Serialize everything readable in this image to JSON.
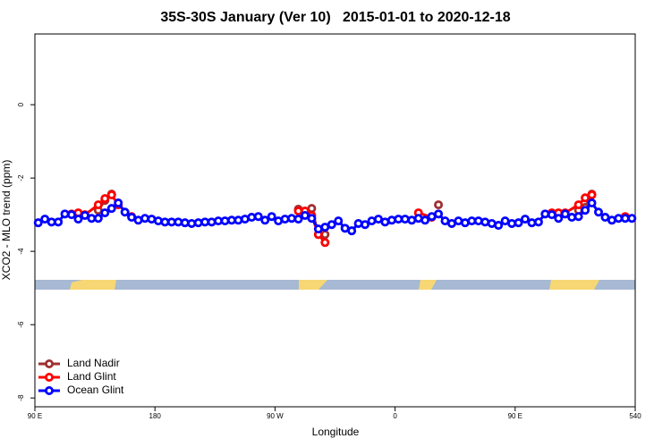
{
  "chart_data": {
    "type": "line",
    "title": "35S-30S January (Ver 10)   2015-01-01 to 2020-12-18",
    "ylabel": "XCO2 - MLO trend (ppm)",
    "xlabel": "Longitude",
    "xlim": [
      90,
      540
    ],
    "ylim": [
      -8.24,
      1.93
    ],
    "xticks": [
      {
        "value": 90,
        "label": "90 E"
      },
      180,
      {
        "value": 270,
        "label": "90 W"
      },
      {
        "value": 360,
        "label": "0"
      },
      {
        "value": 450,
        "label": "90 E"
      },
      540
    ],
    "yticks": [
      0,
      -2,
      -4,
      -6,
      -8
    ],
    "legend": "bottomleft",
    "series": [
      {
        "name": "Land Nadir",
        "color": "#a03030",
        "x": [
          137.5,
          142.5,
          147.5,
          287.5,
          297.5,
          302.5,
          307.5,
          392.5,
          497.5,
          502.5,
          507.5
        ],
        "values": [
          -2.88,
          -2.61,
          -2.44,
          -2.85,
          -2.83,
          -3.54,
          -3.54,
          -2.73,
          -2.88,
          -2.8,
          -2.44
        ]
      },
      {
        "name": "Land Glint",
        "color": "#ff0000",
        "x": [
          117.5,
          122.5,
          127.5,
          137.5,
          142.5,
          147.5,
          152.5,
          162.5,
          287.5,
          292.5,
          297.5,
          302.5,
          307.5,
          377.5,
          387.5,
          477.5,
          482.5,
          487.5,
          497.5,
          502.5,
          507.5,
          532.5
        ],
        "values": [
          -2.98,
          -2.95,
          -3.0,
          -2.73,
          -2.56,
          -2.46,
          -2.73,
          -3.05,
          -2.9,
          -2.9,
          -3.02,
          -3.54,
          -3.76,
          -2.95,
          -3.07,
          -2.95,
          -2.95,
          -2.95,
          -2.73,
          -2.54,
          -2.46,
          -3.05
        ]
      },
      {
        "name": "Ocean Glint",
        "color": "#0000ff",
        "x": [
          92.5,
          97.5,
          102.5,
          107.5,
          112.5,
          117.5,
          122.5,
          127.5,
          132.5,
          137.5,
          142.5,
          147.5,
          152.5,
          157.5,
          162.5,
          167.5,
          172.5,
          177.5,
          182.5,
          187.5,
          192.5,
          197.5,
          202.5,
          207.5,
          212.5,
          217.5,
          222.5,
          227.5,
          232.5,
          237.5,
          242.5,
          247.5,
          252.5,
          257.5,
          262.5,
          267.5,
          272.5,
          277.5,
          282.5,
          287.5,
          292.5,
          297.5,
          302.5,
          307.5,
          312.5,
          317.5,
          322.5,
          327.5,
          332.5,
          337.5,
          342.5,
          347.5,
          352.5,
          357.5,
          362.5,
          367.5,
          372.5,
          377.5,
          382.5,
          387.5,
          392.5,
          397.5,
          402.5,
          407.5,
          412.5,
          417.5,
          422.5,
          427.5,
          432.5,
          437.5,
          442.5,
          447.5,
          452.5,
          457.5,
          462.5,
          467.5,
          472.5,
          477.5,
          482.5,
          487.5,
          492.5,
          497.5,
          502.5,
          507.5,
          512.5,
          517.5,
          522.5,
          527.5,
          532.5,
          537.5
        ],
        "values": [
          -3.22,
          -3.12,
          -3.2,
          -3.2,
          -2.98,
          -3.0,
          -3.12,
          -3.02,
          -3.1,
          -3.1,
          -2.95,
          -2.83,
          -2.68,
          -2.93,
          -3.07,
          -3.15,
          -3.1,
          -3.12,
          -3.17,
          -3.2,
          -3.2,
          -3.2,
          -3.22,
          -3.24,
          -3.22,
          -3.2,
          -3.2,
          -3.17,
          -3.17,
          -3.15,
          -3.15,
          -3.12,
          -3.07,
          -3.05,
          -3.15,
          -3.05,
          -3.17,
          -3.12,
          -3.1,
          -3.12,
          -3.02,
          -3.1,
          -3.39,
          -3.34,
          -3.27,
          -3.17,
          -3.37,
          -3.44,
          -3.24,
          -3.27,
          -3.17,
          -3.12,
          -3.2,
          -3.15,
          -3.12,
          -3.12,
          -3.15,
          -3.1,
          -3.15,
          -3.05,
          -2.98,
          -3.17,
          -3.24,
          -3.17,
          -3.22,
          -3.17,
          -3.17,
          -3.2,
          -3.24,
          -3.29,
          -3.17,
          -3.24,
          -3.22,
          -3.12,
          -3.22,
          -3.2,
          -2.98,
          -3.0,
          -3.1,
          -2.98,
          -3.07,
          -3.05,
          -2.88,
          -2.68,
          -2.93,
          -3.07,
          -3.15,
          -3.1,
          -3.1,
          -3.1
        ]
      }
    ]
  }
}
